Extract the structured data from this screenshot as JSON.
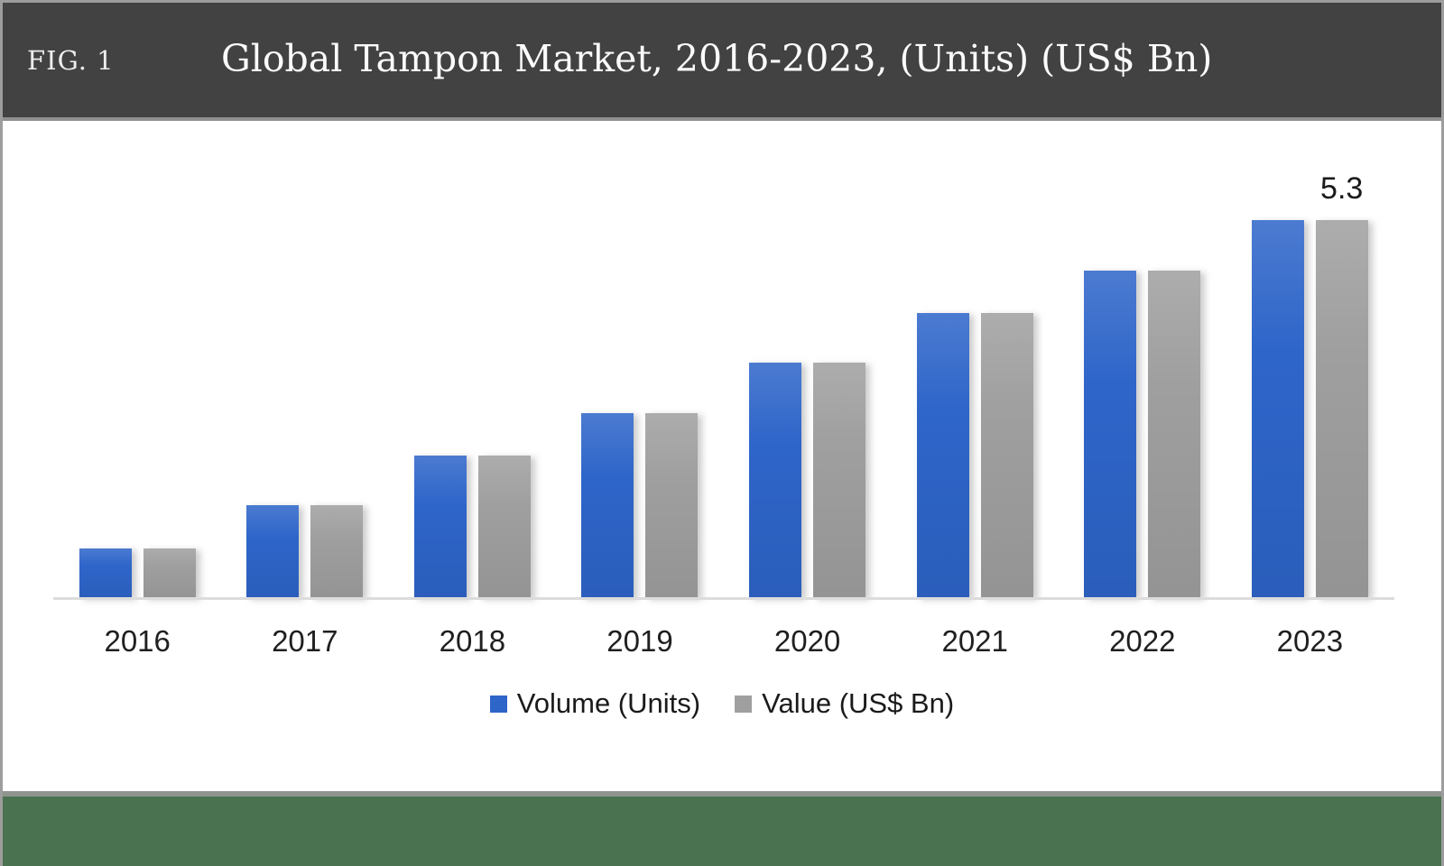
{
  "header": {
    "fig_label": "FIG. 1",
    "title": "Global Tampon Market, 2016-2023, (Units) (US$ Bn)"
  },
  "chart_data": {
    "type": "bar",
    "title": "Global Tampon Market, 2016-2023, (Units) (US$ Bn)",
    "categories": [
      "2016",
      "2017",
      "2018",
      "2019",
      "2020",
      "2021",
      "2022",
      "2023"
    ],
    "series": [
      {
        "id": "volume",
        "name": "Volume (Units)",
        "color": "#2e65c9",
        "values": [
          0.7,
          1.3,
          2.0,
          2.6,
          3.3,
          4.0,
          4.6,
          5.3
        ]
      },
      {
        "id": "value",
        "name": "Value (US$ Bn)",
        "color": "#9f9f9f",
        "values": [
          0.7,
          1.3,
          2.0,
          2.6,
          3.3,
          4.0,
          4.6,
          5.3
        ]
      }
    ],
    "annotation": {
      "text": "5.3",
      "category_index": 7,
      "series_index": 1
    },
    "xlabel": "",
    "ylabel": "",
    "ylim": [
      0,
      6
    ],
    "gridlines": false,
    "y_axis_visible": false,
    "legend_position": "bottom",
    "axis_line_color": "#dcdcdc"
  },
  "colors": {
    "header_bg": "#424242",
    "frame_border": "#9d9d9d",
    "footer_bg": "#4a7150",
    "volume_blue": "#2e65c9",
    "value_gray": "#9f9f9f",
    "text_dark": "#1f1f1f",
    "title_text": "#fbfbfb"
  }
}
